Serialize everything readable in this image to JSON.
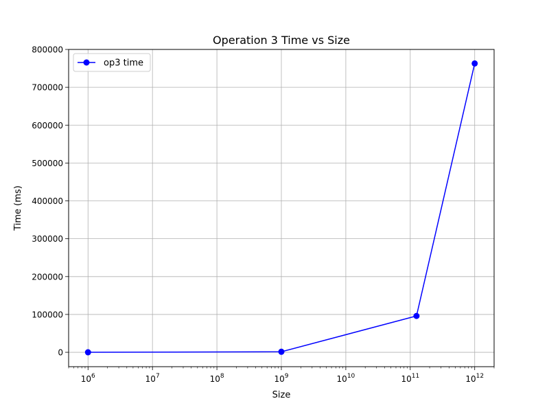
{
  "chart_data": {
    "type": "line",
    "title": "Operation 3 Time vs Size",
    "xlabel": "Size",
    "ylabel": "Time (ms)",
    "x_scale": "log",
    "xlim": [
      500000,
      2000000000000
    ],
    "ylim": [
      -38000,
      800000
    ],
    "x_ticks": [
      1000000,
      10000000,
      100000000,
      1000000000,
      10000000000,
      100000000000,
      1000000000000
    ],
    "x_tick_labels": [
      {
        "base": "10",
        "exp": "6"
      },
      {
        "base": "10",
        "exp": "7"
      },
      {
        "base": "10",
        "exp": "8"
      },
      {
        "base": "10",
        "exp": "9"
      },
      {
        "base": "10",
        "exp": "10"
      },
      {
        "base": "10",
        "exp": "11"
      },
      {
        "base": "10",
        "exp": "12"
      }
    ],
    "y_ticks": [
      0,
      100000,
      200000,
      300000,
      400000,
      500000,
      600000,
      700000,
      800000
    ],
    "y_tick_labels": [
      "0",
      "100000",
      "200000",
      "300000",
      "400000",
      "500000",
      "600000",
      "700000",
      "800000"
    ],
    "grid": true,
    "legend_position": "top-left",
    "series": [
      {
        "name": "op3 time",
        "color": "#0000ff",
        "marker": "circle",
        "x": [
          1000000,
          1000000000,
          125000000000,
          1000000000000
        ],
        "y": [
          0,
          1400,
          96000,
          763000
        ]
      }
    ]
  }
}
